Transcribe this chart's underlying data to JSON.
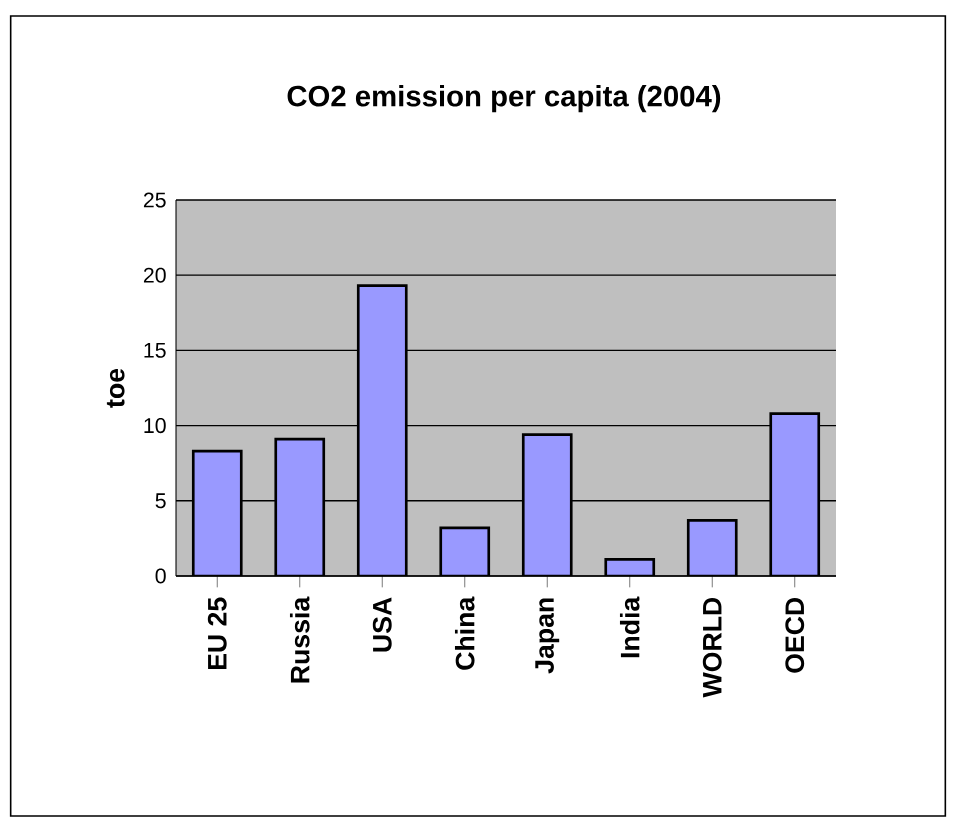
{
  "chart_data": {
    "type": "bar",
    "title": "CO2 emission per capita (2004)",
    "ylabel": "toe",
    "categories": [
      "EU 25",
      "Russia",
      "USA",
      "China",
      "Japan",
      "India",
      "WORLD",
      "OECD"
    ],
    "values": [
      8.3,
      9.1,
      19.3,
      3.2,
      9.4,
      1.1,
      3.7,
      10.8
    ],
    "color": "#9999ff",
    "ylim": [
      0,
      25
    ],
    "yticks": [
      0,
      5,
      10,
      15,
      20,
      25
    ],
    "grid": "y"
  }
}
